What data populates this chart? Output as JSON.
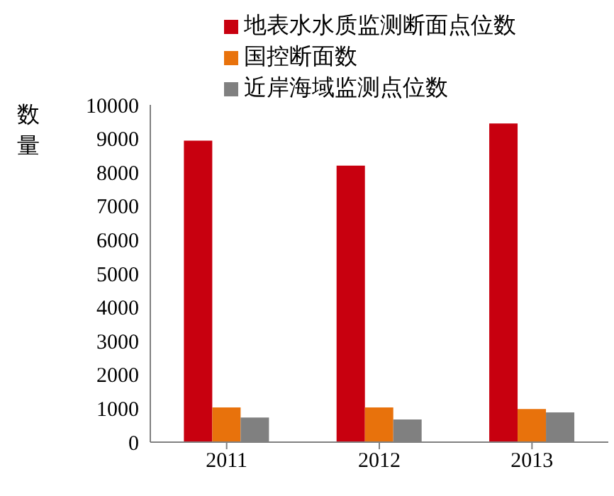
{
  "chart_data": {
    "type": "bar",
    "ylabel": "数量",
    "categories": [
      "2011",
      "2012",
      "2013"
    ],
    "series": [
      {
        "name": "地表水水质监测断面点位数",
        "color": "#c8000f",
        "values": [
          8940,
          8200,
          9450
        ]
      },
      {
        "name": "国控断面数",
        "color": "#e8720c",
        "values": [
          1030,
          1030,
          980
        ]
      },
      {
        "name": "近岸海域监测点位数",
        "color": "#808080",
        "values": [
          730,
          670,
          880
        ]
      }
    ],
    "ylim": [
      0,
      10000
    ],
    "yticks": [
      0,
      1000,
      2000,
      3000,
      4000,
      5000,
      6000,
      7000,
      8000,
      9000,
      10000
    ],
    "grid": false,
    "legend": "top right"
  }
}
